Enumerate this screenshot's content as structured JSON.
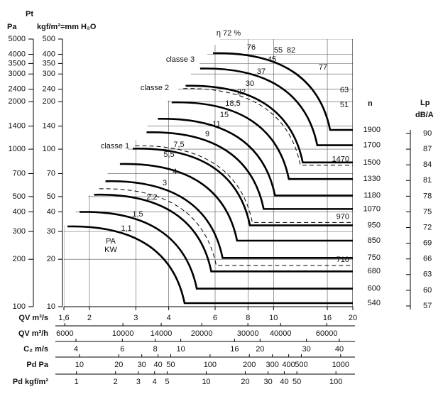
{
  "chart_data": {
    "type": "fan-performance",
    "pt_label": "Pt",
    "pa_label": "Pa",
    "kgf_label": "kgf/m²=mm H₂O",
    "pa_ticks": [
      100,
      200,
      300,
      400,
      500,
      700,
      1000,
      1400,
      2000,
      2400,
      3000,
      3500,
      4000,
      5000
    ],
    "pa_lim": [
      100,
      5000
    ],
    "yticks": [
      10,
      20,
      30,
      40,
      50,
      70,
      100,
      140,
      200,
      240,
      300,
      350,
      400,
      500
    ],
    "ylim": [
      10,
      500
    ],
    "log_scale": true,
    "grid": true,
    "x_axes": [
      {
        "label": "QV m³/s",
        "xlim": [
          1.6,
          20
        ],
        "xticks": [
          {
            "value": 1.6,
            "label": "1,6"
          },
          2,
          3,
          4,
          6,
          8,
          10,
          16,
          20
        ]
      },
      {
        "label": "QV m³/h",
        "xlim": [
          5950,
          75500
        ],
        "xticks": [
          6000,
          10000,
          14000,
          20000,
          30000,
          40000,
          60000
        ]
      },
      {
        "label": "C₂ m/s",
        "xlim": [
          3.6,
          45
        ],
        "xticks": [
          4,
          6,
          8,
          10,
          16,
          20,
          30,
          40
        ]
      },
      {
        "label": "Pd Pa",
        "xlim": [
          7.6,
          1240
        ],
        "xticks": [
          10,
          20,
          30,
          40,
          50,
          100,
          200,
          300,
          400,
          500,
          1000
        ]
      },
      {
        "label": "Pd kgf/m²",
        "xlim": [
          0.8,
          135
        ],
        "xticks": [
          1,
          2,
          3,
          4,
          5,
          10,
          20,
          30,
          40,
          50,
          100
        ]
      }
    ],
    "n_label": "n",
    "n": [
      1900,
      1700,
      1500,
      1330,
      1180,
      1070,
      950,
      850,
      750,
      680,
      600,
      540
    ],
    "nlim": [
      540,
      1900
    ],
    "n_dashed": [
      1470,
      970,
      710
    ],
    "lp_label": "Lp",
    "lp_unit": "dB/A",
    "lp_ticks": [
      90,
      87,
      84,
      81,
      78,
      75,
      72,
      69,
      66,
      63,
      60,
      57
    ],
    "lp_lim": [
      57,
      90
    ],
    "classes": [
      "classe 1",
      "classe 2",
      "classe 3"
    ],
    "power_kw": [
      "1,1",
      "1,5",
      "2,2",
      "3",
      "4",
      "5,5",
      "7,5",
      "9",
      "11",
      "15",
      "18,5",
      "22",
      "30",
      "37",
      "45",
      "55"
    ],
    "efficiency": [
      "η 72 %",
      "76",
      "82",
      "77",
      "63",
      "51"
    ],
    "pa_kw": [
      "PA",
      "KW"
    ]
  }
}
